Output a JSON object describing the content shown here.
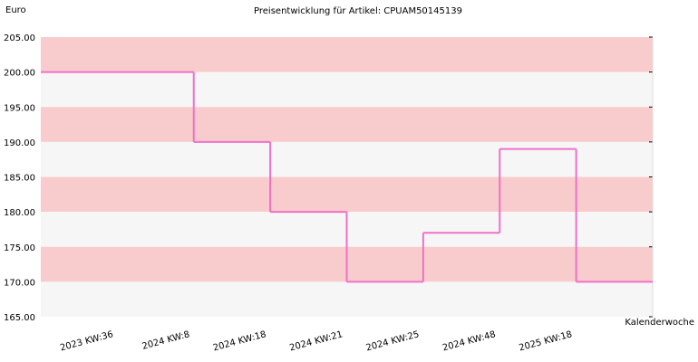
{
  "chart_data": {
    "type": "step",
    "title": "Preisentwicklung für Artikel: CPUAM50145139",
    "y_label": "Euro",
    "x_label": "Kalenderwoche",
    "categories": [
      "2023 KW:36",
      "2024 KW:8",
      "2024 KW:18",
      "2024 KW:21",
      "2024 KW:25",
      "2024 KW:48",
      "2025 KW:18"
    ],
    "values": [
      200,
      190,
      180,
      170,
      177,
      189,
      170
    ],
    "color": "#f070c8",
    "band_colors": [
      "#f8cccc",
      "#f6f6f6"
    ],
    "ylim": [
      165,
      205
    ],
    "yticks": [
      {
        "value": 165,
        "label": "165.00"
      },
      {
        "value": 170,
        "label": "170.00"
      },
      {
        "value": 175,
        "label": "175.00"
      },
      {
        "value": 180,
        "label": "180.00"
      },
      {
        "value": 185,
        "label": "185.00"
      },
      {
        "value": 190,
        "label": "190.00"
      },
      {
        "value": 195,
        "label": "195.00"
      },
      {
        "value": 200,
        "label": "200.00"
      },
      {
        "value": 205,
        "label": "205.00"
      }
    ]
  }
}
